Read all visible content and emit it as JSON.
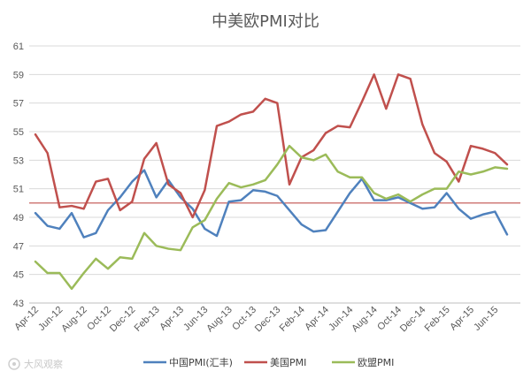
{
  "chart_data": {
    "type": "line",
    "title": "中美欧PMI对比",
    "xlabel": "",
    "ylabel": "",
    "ylim": [
      43,
      61
    ],
    "yticks": [
      43,
      45,
      47,
      49,
      51,
      53,
      55,
      57,
      59,
      61
    ],
    "grid": true,
    "legend_position": "bottom",
    "reference_line": {
      "value": 50,
      "color": "#c0504d"
    },
    "tick_labels": [
      "Apr-12",
      "Jun-12",
      "Aug-12",
      "Oct-12",
      "Dec-12",
      "Feb-13",
      "Apr-13",
      "Jun-13",
      "Aug-13",
      "Oct-13",
      "Dec-13",
      "Feb-14",
      "Apr-14",
      "Jun-14",
      "Aug-14",
      "Oct-14",
      "Dec-14",
      "Feb-15",
      "Apr-15",
      "Jun-15"
    ],
    "categories": [
      "Apr-12",
      "May-12",
      "Jun-12",
      "Jul-12",
      "Aug-12",
      "Sep-12",
      "Oct-12",
      "Nov-12",
      "Dec-12",
      "Jan-13",
      "Feb-13",
      "Mar-13",
      "Apr-13",
      "May-13",
      "Jun-13",
      "Jul-13",
      "Aug-13",
      "Sep-13",
      "Oct-13",
      "Nov-13",
      "Dec-13",
      "Jan-14",
      "Feb-14",
      "Mar-14",
      "Apr-14",
      "May-14",
      "Jun-14",
      "Jul-14",
      "Aug-14",
      "Sep-14",
      "Oct-14",
      "Nov-14",
      "Dec-14",
      "Jan-15",
      "Feb-15",
      "Mar-15",
      "Apr-15",
      "May-15",
      "Jun-15",
      "Jul-15"
    ],
    "series": [
      {
        "name": "中国PMI(汇丰)",
        "color": "#4f81bd",
        "values": [
          49.3,
          48.4,
          48.2,
          49.3,
          47.6,
          47.9,
          49.5,
          50.4,
          51.5,
          52.3,
          50.4,
          51.6,
          50.4,
          49.6,
          48.2,
          47.7,
          50.1,
          50.2,
          50.9,
          50.8,
          50.5,
          49.5,
          48.5,
          48.0,
          48.1,
          49.4,
          50.7,
          51.7,
          50.2,
          50.2,
          50.4,
          50.0,
          49.6,
          49.7,
          50.7,
          49.6,
          48.9,
          49.2,
          49.4,
          47.8
        ]
      },
      {
        "name": "美国PMI",
        "color": "#c0504d",
        "values": [
          54.8,
          53.5,
          49.7,
          49.8,
          49.6,
          51.5,
          51.7,
          49.5,
          50.1,
          53.1,
          54.2,
          51.3,
          50.7,
          49.0,
          50.9,
          55.4,
          55.7,
          56.2,
          56.4,
          57.3,
          57.0,
          51.3,
          53.2,
          53.7,
          54.9,
          55.4,
          55.3,
          57.1,
          59.0,
          56.6,
          59.0,
          58.7,
          55.5,
          53.5,
          52.9,
          51.5,
          54.0,
          53.8,
          53.5,
          52.7
        ]
      },
      {
        "name": "欧盟PMI",
        "color": "#9bbb59",
        "values": [
          45.9,
          45.1,
          45.1,
          44.0,
          45.1,
          46.1,
          45.4,
          46.2,
          46.1,
          47.9,
          47.0,
          46.8,
          46.7,
          48.3,
          48.8,
          50.3,
          51.4,
          51.1,
          51.3,
          51.6,
          52.7,
          54.0,
          53.2,
          53.0,
          53.4,
          52.2,
          51.8,
          51.8,
          50.7,
          50.3,
          50.6,
          50.1,
          50.6,
          51.0,
          51.0,
          52.2,
          52.0,
          52.2,
          52.5,
          52.4
        ]
      }
    ]
  },
  "watermark": "大风观察"
}
